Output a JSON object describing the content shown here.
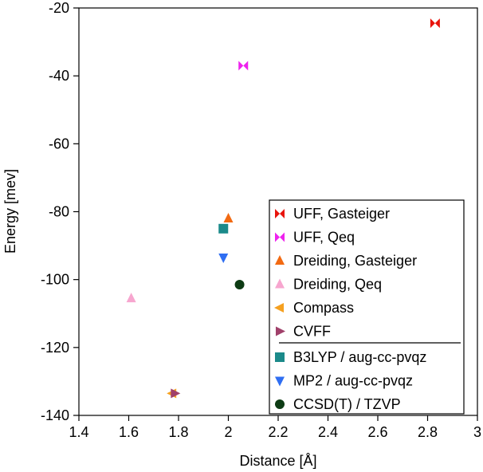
{
  "chart_data": {
    "type": "scatter",
    "title": "",
    "xlabel": "Distance [Å]",
    "ylabel": "Energy [mev]",
    "xlim": [
      1.4,
      3.0
    ],
    "ylim": [
      -140,
      -20
    ],
    "x_ticks": [
      "1.4",
      "1.6",
      "1.8",
      "2",
      "2.2",
      "2.4",
      "2.6",
      "2.8",
      "3"
    ],
    "y_ticks": [
      "-20",
      "-40",
      "-60",
      "-80",
      "-100",
      "-120",
      "-140"
    ],
    "grid": false,
    "legend_position": "bottom-right",
    "series": [
      {
        "name": "UFF, Gasteiger",
        "marker": "bowtie",
        "color": "#e8140c",
        "points": [
          {
            "x": 2.83,
            "y": -24.5
          }
        ]
      },
      {
        "name": "UFF, Qeq",
        "marker": "bowtie",
        "color": "#ee22ee",
        "points": [
          {
            "x": 2.06,
            "y": -37.0
          }
        ]
      },
      {
        "name": "Dreiding, Gasteiger",
        "marker": "triangle-up",
        "color": "#f26a12",
        "points": [
          {
            "x": 2.0,
            "y": -82.0
          }
        ]
      },
      {
        "name": "Dreiding, Qeq",
        "marker": "triangle-up",
        "color": "#f7a6cf",
        "points": [
          {
            "x": 1.61,
            "y": -105.5
          }
        ]
      },
      {
        "name": "Compass",
        "marker": "triangle-left",
        "color": "#f5a020",
        "points": [
          {
            "x": 1.775,
            "y": -133.5
          }
        ]
      },
      {
        "name": "CVFF",
        "marker": "triangle-right",
        "color": "#a0406a",
        "points": [
          {
            "x": 1.785,
            "y": -133.5
          }
        ]
      },
      {
        "name": "B3LYP / aug-cc-pvqz",
        "marker": "square",
        "color": "#1b8a8a",
        "points": [
          {
            "x": 1.98,
            "y": -85.0
          }
        ]
      },
      {
        "name": "MP2 / aug-cc-pvqz",
        "marker": "triangle-down",
        "color": "#2f6ef2",
        "points": [
          {
            "x": 1.98,
            "y": -93.5
          }
        ]
      },
      {
        "name": "CCSD(T) / TZVP",
        "marker": "circle",
        "color": "#0d3b14",
        "points": [
          {
            "x": 2.045,
            "y": -101.5
          }
        ]
      }
    ],
    "legend_separator_after": 5
  }
}
